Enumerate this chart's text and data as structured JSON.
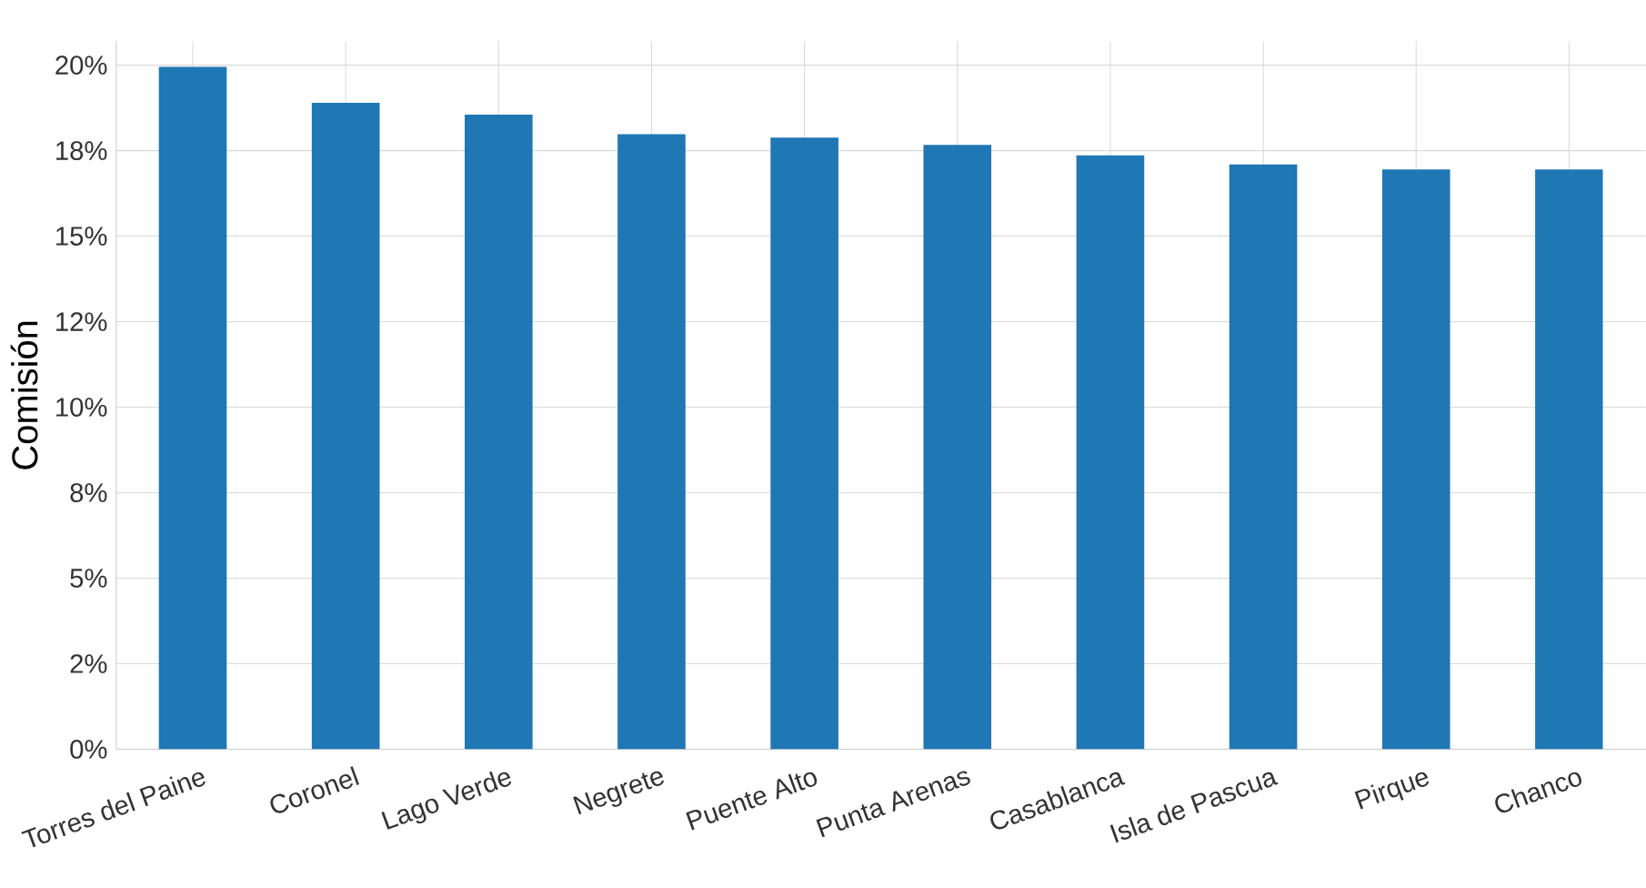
{
  "chart_data": {
    "type": "bar",
    "ylabel": "Comisión",
    "categories": [
      "Torres del Paine",
      "Coronel",
      "Lago Verde",
      "Negrete",
      "Puente Alto",
      "Punta Arenas",
      "Casablanca",
      "Isla de Pascua",
      "Pirque",
      "Chanco"
    ],
    "values": [
      19.95,
      18.9,
      18.55,
      17.98,
      17.88,
      17.67,
      17.36,
      17.1,
      16.95,
      16.95
    ],
    "color": "#1f77b4",
    "ylim": [
      0,
      20.7
    ],
    "yticks": [
      {
        "value": 0,
        "label": "0%"
      },
      {
        "value": 2.5,
        "label": "2%"
      },
      {
        "value": 5,
        "label": "5%"
      },
      {
        "value": 7.5,
        "label": "8%"
      },
      {
        "value": 10,
        "label": "10%"
      },
      {
        "value": 12.5,
        "label": "12%"
      },
      {
        "value": 15,
        "label": "15%"
      },
      {
        "value": 17.5,
        "label": "18%"
      },
      {
        "value": 20,
        "label": "20%"
      }
    ],
    "grid": true
  }
}
